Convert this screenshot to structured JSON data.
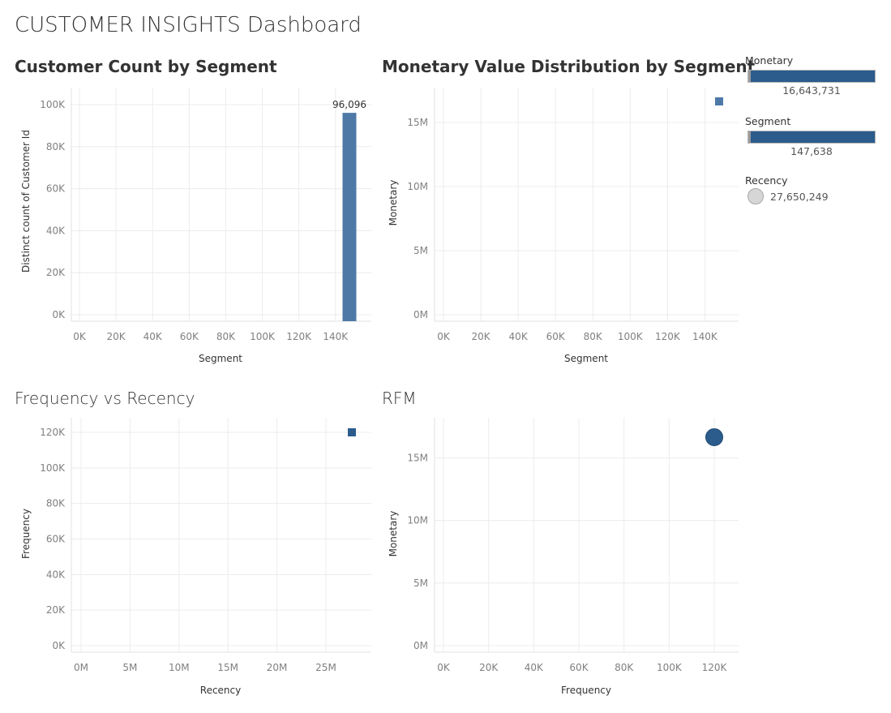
{
  "dashboard": {
    "title": "CUSTOMER INSIGHTS Dashboard"
  },
  "colors": {
    "bar": "#4e79a7",
    "mark": "#2b5c8c",
    "grid": "#ececec",
    "tick": "#808080"
  },
  "panels": {
    "customer_count": {
      "title": "Customer Count by Segment"
    },
    "monetary_dist": {
      "title": "Monetary Value Distribution by Segment"
    },
    "freq_recency": {
      "title": "Frequency vs Recency"
    },
    "rfm": {
      "title": "RFM"
    }
  },
  "legend": {
    "monetary": {
      "title": "Monetary",
      "value": "16,643,731"
    },
    "segment": {
      "title": "Segment",
      "value": "147,638"
    },
    "recency": {
      "title": "Recency",
      "value": "27,650,249"
    }
  },
  "chart_data": [
    {
      "id": "customer_count",
      "type": "bar",
      "title": "Customer Count by Segment",
      "xlabel": "Segment",
      "ylabel": "Distinct count of Customer Id",
      "xlim": [
        0,
        147638
      ],
      "ylim": [
        0,
        100000
      ],
      "xticks": [
        "0K",
        "20K",
        "40K",
        "60K",
        "80K",
        "100K",
        "120K",
        "140K"
      ],
      "yticks": [
        "100K",
        "80K",
        "60K",
        "40K",
        "20K",
        "0K"
      ],
      "points": [
        {
          "x": 147638,
          "y": 96096,
          "label": "96,096"
        }
      ]
    },
    {
      "id": "monetary_dist",
      "type": "scatter",
      "title": "Monetary Value Distribution by Segment",
      "xlabel": "Segment",
      "ylabel": "Monetary",
      "xlim": [
        0,
        147638
      ],
      "ylim": [
        0,
        16643731
      ],
      "xticks": [
        "0K",
        "20K",
        "40K",
        "60K",
        "80K",
        "100K",
        "120K",
        "140K"
      ],
      "yticks": [
        "15M",
        "10M",
        "5M",
        "0M"
      ],
      "points": [
        {
          "x": 147638,
          "y": 16643731
        }
      ]
    },
    {
      "id": "freq_recency",
      "type": "scatter",
      "title": "Frequency vs Recency",
      "xlabel": "Recency",
      "ylabel": "Frequency",
      "xlim": [
        0,
        27650249
      ],
      "ylim": [
        0,
        120000
      ],
      "xticks": [
        "0M",
        "5M",
        "10M",
        "15M",
        "20M",
        "25M"
      ],
      "yticks": [
        "120K",
        "100K",
        "80K",
        "60K",
        "40K",
        "20K",
        "0K"
      ],
      "points": [
        {
          "x": 27650249,
          "y": 120000
        }
      ]
    },
    {
      "id": "rfm",
      "type": "scatter",
      "title": "RFM",
      "xlabel": "Frequency",
      "ylabel": "Monetary",
      "xlim": [
        0,
        120000
      ],
      "ylim": [
        0,
        16643731
      ],
      "xticks": [
        "0K",
        "20K",
        "40K",
        "60K",
        "80K",
        "100K",
        "120K"
      ],
      "yticks": [
        "15M",
        "10M",
        "5M",
        "0M"
      ],
      "points": [
        {
          "x": 120000,
          "y": 16643731
        }
      ]
    }
  ]
}
